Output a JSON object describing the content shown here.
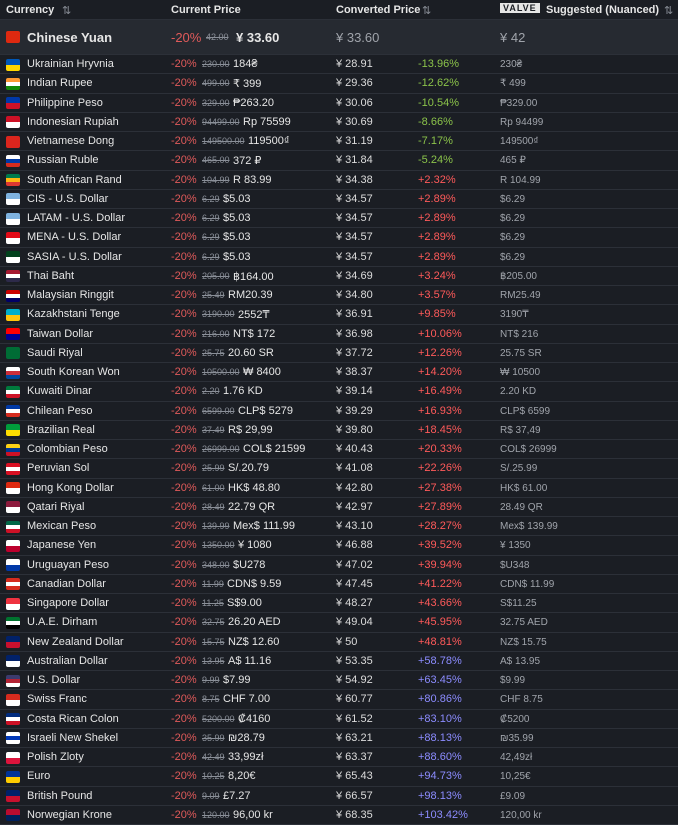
{
  "header": {
    "currency": "Currency",
    "current_price": "Current Price",
    "converted_price": "Converted Price",
    "valve_logo": "VALVE",
    "suggested": "Suggested (Nuanced)"
  },
  "base_row": {
    "name": "Chinese Yuan",
    "discount": "-20%",
    "original": "42.00",
    "current": "¥ 33.60",
    "converted": "¥ 33.60",
    "suggested": "¥ 42"
  },
  "rows": [
    [
      "Ukrainian Hryvnia",
      "-20%",
      "230.00",
      "184₴",
      "¥ 28.91",
      "-13.96%",
      "230₴"
    ],
    [
      "Indian Rupee",
      "-20%",
      "499.00",
      "₹ 399",
      "¥ 29.36",
      "-12.62%",
      "₹ 499"
    ],
    [
      "Philippine Peso",
      "-20%",
      "329.00",
      "₱263.20",
      "¥ 30.06",
      "-10.54%",
      "₱329.00"
    ],
    [
      "Indonesian Rupiah",
      "-20%",
      "94499.00",
      "Rp 75599",
      "¥ 30.69",
      "-8.66%",
      "Rp 94499"
    ],
    [
      "Vietnamese Dong",
      "-20%",
      "149500.00",
      "119500₫",
      "¥ 31.19",
      "-7.17%",
      "149500₫"
    ],
    [
      "Russian Ruble",
      "-20%",
      "465.00",
      "372 ₽",
      "¥ 31.84",
      "-5.24%",
      "465 ₽"
    ],
    [
      "South African Rand",
      "-20%",
      "104.99",
      "R 83.99",
      "¥ 34.38",
      "+2.32%",
      "R 104.99"
    ],
    [
      "CIS - U.S. Dollar",
      "-20%",
      "6.29",
      "$5.03",
      "¥ 34.57",
      "+2.89%",
      "$6.29"
    ],
    [
      "LATAM - U.S. Dollar",
      "-20%",
      "6.29",
      "$5.03",
      "¥ 34.57",
      "+2.89%",
      "$6.29"
    ],
    [
      "MENA - U.S. Dollar",
      "-20%",
      "6.29",
      "$5.03",
      "¥ 34.57",
      "+2.89%",
      "$6.29"
    ],
    [
      "SASIA - U.S. Dollar",
      "-20%",
      "6.29",
      "$5.03",
      "¥ 34.57",
      "+2.89%",
      "$6.29"
    ],
    [
      "Thai Baht",
      "-20%",
      "205.00",
      "฿164.00",
      "¥ 34.69",
      "+3.24%",
      "฿205.00"
    ],
    [
      "Malaysian Ringgit",
      "-20%",
      "25.49",
      "RM20.39",
      "¥ 34.80",
      "+3.57%",
      "RM25.49"
    ],
    [
      "Kazakhstani Tenge",
      "-20%",
      "3190.00",
      "2552₸",
      "¥ 36.91",
      "+9.85%",
      "3190₸"
    ],
    [
      "Taiwan Dollar",
      "-20%",
      "216.00",
      "NT$ 172",
      "¥ 36.98",
      "+10.06%",
      "NT$ 216"
    ],
    [
      "Saudi Riyal",
      "-20%",
      "25.75",
      "20.60 SR",
      "¥ 37.72",
      "+12.26%",
      "25.75 SR"
    ],
    [
      "South Korean Won",
      "-20%",
      "10500.00",
      "₩ 8400",
      "¥ 38.37",
      "+14.20%",
      "₩ 10500"
    ],
    [
      "Kuwaiti Dinar",
      "-20%",
      "2.20",
      "1.76 KD",
      "¥ 39.14",
      "+16.49%",
      "2.20 KD"
    ],
    [
      "Chilean Peso",
      "-20%",
      "6599.00",
      "CLP$ 5279",
      "¥ 39.29",
      "+16.93%",
      "CLP$ 6599"
    ],
    [
      "Brazilian Real",
      "-20%",
      "37.49",
      "R$ 29,99",
      "¥ 39.80",
      "+18.45%",
      "R$ 37,49"
    ],
    [
      "Colombian Peso",
      "-20%",
      "26999.00",
      "COL$ 21599",
      "¥ 40.43",
      "+20.33%",
      "COL$ 26999"
    ],
    [
      "Peruvian Sol",
      "-20%",
      "25.99",
      "S/.20.79",
      "¥ 41.08",
      "+22.26%",
      "S/.25.99"
    ],
    [
      "Hong Kong Dollar",
      "-20%",
      "61.00",
      "HK$ 48.80",
      "¥ 42.80",
      "+27.38%",
      "HK$ 61.00"
    ],
    [
      "Qatari Riyal",
      "-20%",
      "28.49",
      "22.79 QR",
      "¥ 42.97",
      "+27.89%",
      "28.49 QR"
    ],
    [
      "Mexican Peso",
      "-20%",
      "139.99",
      "Mex$ 111.99",
      "¥ 43.10",
      "+28.27%",
      "Mex$ 139.99"
    ],
    [
      "Japanese Yen",
      "-20%",
      "1350.00",
      "¥ 1080",
      "¥ 46.88",
      "+39.52%",
      "¥ 1350"
    ],
    [
      "Uruguayan Peso",
      "-20%",
      "348.00",
      "$U278",
      "¥ 47.02",
      "+39.94%",
      "$U348"
    ],
    [
      "Canadian Dollar",
      "-20%",
      "11.99",
      "CDN$ 9.59",
      "¥ 47.45",
      "+41.22%",
      "CDN$ 11.99"
    ],
    [
      "Singapore Dollar",
      "-20%",
      "11.25",
      "S$9.00",
      "¥ 48.27",
      "+43.66%",
      "S$11.25"
    ],
    [
      "U.A.E. Dirham",
      "-20%",
      "32.75",
      "26.20 AED",
      "¥ 49.04",
      "+45.95%",
      "32.75 AED"
    ],
    [
      "New Zealand Dollar",
      "-20%",
      "15.75",
      "NZ$ 12.60",
      "¥ 50",
      "+48.81%",
      "NZ$ 15.75"
    ],
    [
      "Australian Dollar",
      "-20%",
      "13.95",
      "A$ 11.16",
      "¥ 53.35",
      "+58.78%",
      "A$ 13.95"
    ],
    [
      "U.S. Dollar",
      "-20%",
      "9.99",
      "$7.99",
      "¥ 54.92",
      "+63.45%",
      "$9.99"
    ],
    [
      "Swiss Franc",
      "-20%",
      "8.75",
      "CHF 7.00",
      "¥ 60.77",
      "+80.86%",
      "CHF 8.75"
    ],
    [
      "Costa Rican Colon",
      "-20%",
      "5200.00",
      "₡4160",
      "¥ 61.52",
      "+83.10%",
      "₡5200"
    ],
    [
      "Israeli New Shekel",
      "-20%",
      "35.99",
      "₪28.79",
      "¥ 63.21",
      "+88.13%",
      "₪35.99"
    ],
    [
      "Polish Zloty",
      "-20%",
      "42.49",
      "33,99zł",
      "¥ 63.37",
      "+88.60%",
      "42,49zł"
    ],
    [
      "Euro",
      "-20%",
      "10.25",
      "8,20€",
      "¥ 65.43",
      "+94.73%",
      "10,25€"
    ],
    [
      "British Pound",
      "-20%",
      "9.09",
      "£7.27",
      "¥ 66.57",
      "+98.13%",
      "£9.09"
    ],
    [
      "Norwegian Krone",
      "-20%",
      "120.00",
      "96,00 kr",
      "¥ 68.35",
      "+103.42%",
      "120,00 kr"
    ]
  ]
}
